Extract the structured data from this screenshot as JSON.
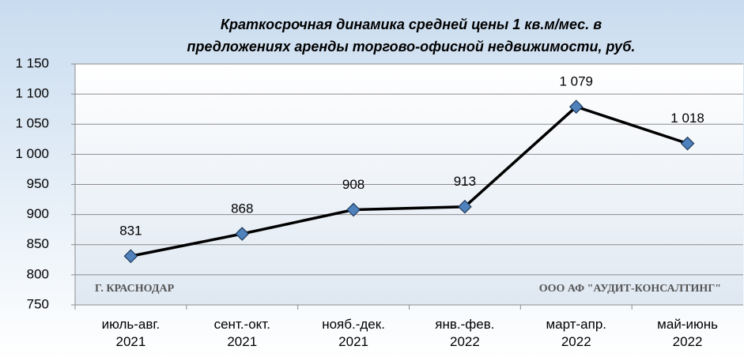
{
  "chart_data": {
    "type": "line",
    "title": [
      "Краткосрочная динамика средней цены 1 кв.м/мес. в",
      "предложениях аренды торгово-офисной недвижимости, руб."
    ],
    "categories": [
      "июль-авг.\n2021",
      "сент.-окт.\n2021",
      "нояб.-дек.\n2021",
      "янв.-фев.\n2022",
      "март-апр.\n2022",
      "май-июнь\n2022"
    ],
    "values": [
      831,
      868,
      908,
      913,
      1079,
      1018
    ],
    "value_labels": [
      "831",
      "868",
      "908",
      "913",
      "1 079",
      "1 018"
    ],
    "color": "#000000",
    "marker_color": "#4f81bd",
    "ylim": [
      750,
      1150
    ],
    "yticks": [
      750,
      800,
      850,
      900,
      950,
      {
        "value": 1000,
        "label": "1 000"
      },
      {
        "value": 1050,
        "label": "1 050"
      },
      {
        "value": 1100,
        "label": "1 100"
      },
      {
        "value": 1150,
        "label": "1 150"
      }
    ],
    "grid": true,
    "annotations": [
      "Г. КРАСНОДАР",
      "ООО АФ \"АУДИТ-КОНСАЛТИНГ\""
    ]
  }
}
